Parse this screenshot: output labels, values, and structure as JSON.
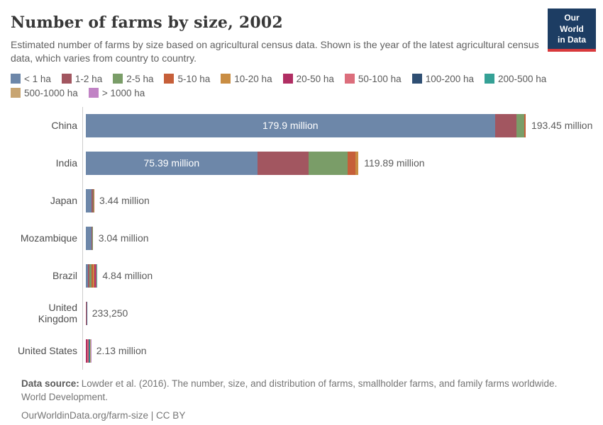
{
  "header": {
    "title": "Number of farms by size, 2002",
    "logo": {
      "line1": "Our World",
      "line2": "in Data",
      "bg_color": "#1d3d63",
      "accent_color": "#d8393c"
    }
  },
  "subtitle": "Estimated number of farms by size based on agricultural census data. Shown is the year of the latest agricultural census data, which varies from country to country.",
  "legend": {
    "items": [
      {
        "label": "< 1 ha",
        "color": "#6d87a9"
      },
      {
        "label": "1-2 ha",
        "color": "#a25660"
      },
      {
        "label": "2-5 ha",
        "color": "#7a9d68"
      },
      {
        "label": "5-10 ha",
        "color": "#c65f39"
      },
      {
        "label": "10-20 ha",
        "color": "#c98d43"
      },
      {
        "label": "20-50 ha",
        "color": "#b02e63"
      },
      {
        "label": "50-100 ha",
        "color": "#dc6e7c"
      },
      {
        "label": "100-200 ha",
        "color": "#2f4f73"
      },
      {
        "label": "200-500 ha",
        "color": "#35a196"
      },
      {
        "label": "500-1000 ha",
        "color": "#c8a572"
      },
      {
        "label": "> 1000 ha",
        "color": "#c183c5"
      }
    ]
  },
  "chart_data": {
    "type": "bar",
    "orientation": "horizontal",
    "stacked": true,
    "title": "Number of farms by size, 2002",
    "value_unit": "million farms",
    "xmax_millions": 193.45,
    "grid": false,
    "categories": [
      "< 1 ha",
      "1-2 ha",
      "2-5 ha",
      "5-10 ha",
      "10-20 ha",
      "20-50 ha",
      "50-100 ha",
      "100-200 ha",
      "200-500 ha",
      "500-1000 ha",
      "> 1000 ha"
    ],
    "rows": [
      {
        "country": "China",
        "total_label": "193.45 million",
        "inside_label": "179.9 million",
        "segments": [
          {
            "bin": "< 1 ha",
            "value": 179.9
          },
          {
            "bin": "1-2 ha",
            "value": 9.6
          },
          {
            "bin": "2-5 ha",
            "value": 3.3
          },
          {
            "bin": "5-10 ha",
            "value": 0.65
          }
        ]
      },
      {
        "country": "India",
        "total_label": "119.89 million",
        "inside_label": "75.39 million",
        "segments": [
          {
            "bin": "< 1 ha",
            "value": 75.39
          },
          {
            "bin": "1-2 ha",
            "value": 22.7
          },
          {
            "bin": "2-5 ha",
            "value": 17.1
          },
          {
            "bin": "5-10 ha",
            "value": 3.4
          },
          {
            "bin": "10-20 ha",
            "value": 1.3
          }
        ]
      },
      {
        "country": "Japan",
        "total_label": "3.44 million",
        "inside_label": "",
        "segments": [
          {
            "bin": "< 1 ha",
            "value": 2.5
          },
          {
            "bin": "1-2 ha",
            "value": 0.62
          },
          {
            "bin": "2-5 ha",
            "value": 0.25
          },
          {
            "bin": "5-10 ha",
            "value": 0.07
          }
        ]
      },
      {
        "country": "Mozambique",
        "total_label": "3.04 million",
        "inside_label": "",
        "segments": [
          {
            "bin": "< 1 ha",
            "value": 2.35
          },
          {
            "bin": "1-2 ha",
            "value": 0.53
          },
          {
            "bin": "2-5 ha",
            "value": 0.16
          }
        ]
      },
      {
        "country": "Brazil",
        "total_label": "4.84 million",
        "inside_label": "",
        "segments": [
          {
            "bin": "< 1 ha",
            "value": 0.95
          },
          {
            "bin": "1-2 ha",
            "value": 0.6
          },
          {
            "bin": "2-5 ha",
            "value": 0.95
          },
          {
            "bin": "5-10 ha",
            "value": 0.65
          },
          {
            "bin": "10-20 ha",
            "value": 0.6
          },
          {
            "bin": "20-50 ha",
            "value": 0.6
          },
          {
            "bin": "50-100 ha",
            "value": 0.3
          },
          {
            "bin": "100-200 ha",
            "value": 0.1
          },
          {
            "bin": "200-500 ha",
            "value": 0.05
          },
          {
            "bin": "500-1000 ha",
            "value": 0.02
          },
          {
            "bin": "> 1000 ha",
            "value": 0.02
          }
        ]
      },
      {
        "country": "United Kingdom",
        "total_label": "233,250",
        "inside_label": "",
        "segments": [
          {
            "bin": "5-10 ha",
            "value": 0.03
          },
          {
            "bin": "10-20 ha",
            "value": 0.04
          },
          {
            "bin": "20-50 ha",
            "value": 0.06
          },
          {
            "bin": "50-100 ha",
            "value": 0.05
          },
          {
            "bin": "100-200 ha",
            "value": 0.04
          },
          {
            "bin": "200-500 ha",
            "value": 0.013
          }
        ]
      },
      {
        "country": "United States",
        "total_label": "2.13 million",
        "inside_label": "",
        "segments": [
          {
            "bin": "10-20 ha",
            "value": 0.15
          },
          {
            "bin": "20-50 ha",
            "value": 0.55
          },
          {
            "bin": "50-100 ha",
            "value": 0.5
          },
          {
            "bin": "100-200 ha",
            "value": 0.45
          },
          {
            "bin": "200-500 ha",
            "value": 0.35
          },
          {
            "bin": "500-1000 ha",
            "value": 0.08
          },
          {
            "bin": "> 1000 ha",
            "value": 0.05
          }
        ]
      }
    ]
  },
  "footer": {
    "source_label": "Data source:",
    "source_text": "Lowder et al. (2016). The number, size, and distribution of farms, smallholder farms, and family farms worldwide. World Development.",
    "citation": "OurWorldinData.org/farm-size | CC BY"
  }
}
